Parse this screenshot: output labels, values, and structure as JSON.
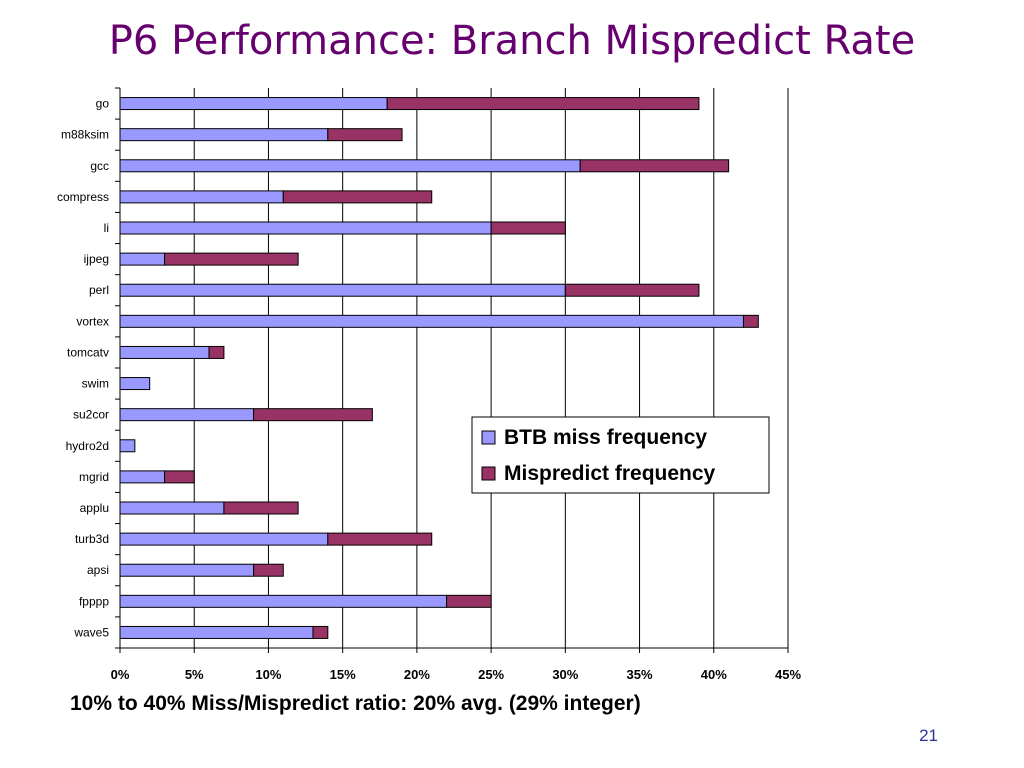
{
  "slide": {
    "title": "P6 Performance: Branch Mispredict Rate",
    "caption": "10% to 40% Miss/Mispredict ratio: 20% avg. (29% integer)",
    "page_number": "21"
  },
  "chart_data": {
    "type": "bar",
    "orientation": "horizontal",
    "stacked": true,
    "categories": [
      "go",
      "m88ksim",
      "gcc",
      "compress",
      "li",
      "ijpeg",
      "perl",
      "vortex",
      "tomcatv",
      "swim",
      "su2cor",
      "hydro2d",
      "mgrid",
      "applu",
      "turb3d",
      "apsi",
      "fpppp",
      "wave5"
    ],
    "series": [
      {
        "name": "BTB miss frequency",
        "color": "#9999ff",
        "values": [
          18,
          14,
          31,
          11,
          25,
          3,
          30,
          42,
          6,
          2,
          9,
          1,
          3,
          7,
          14,
          9,
          22,
          13
        ]
      },
      {
        "name": "Mispredict frequency",
        "color": "#993366",
        "values": [
          21,
          5,
          10,
          10,
          5,
          9,
          9,
          1,
          1,
          0,
          8,
          0,
          2,
          5,
          7,
          2,
          3,
          1
        ]
      }
    ],
    "xlim": [
      0,
      45
    ],
    "xticks": [
      0,
      5,
      10,
      15,
      20,
      25,
      30,
      35,
      40,
      45
    ],
    "xtick_labels": [
      "0%",
      "5%",
      "10%",
      "15%",
      "20%",
      "25%",
      "30%",
      "35%",
      "40%",
      "45%"
    ],
    "grid": "vertical",
    "legend_position": "lower-right"
  }
}
